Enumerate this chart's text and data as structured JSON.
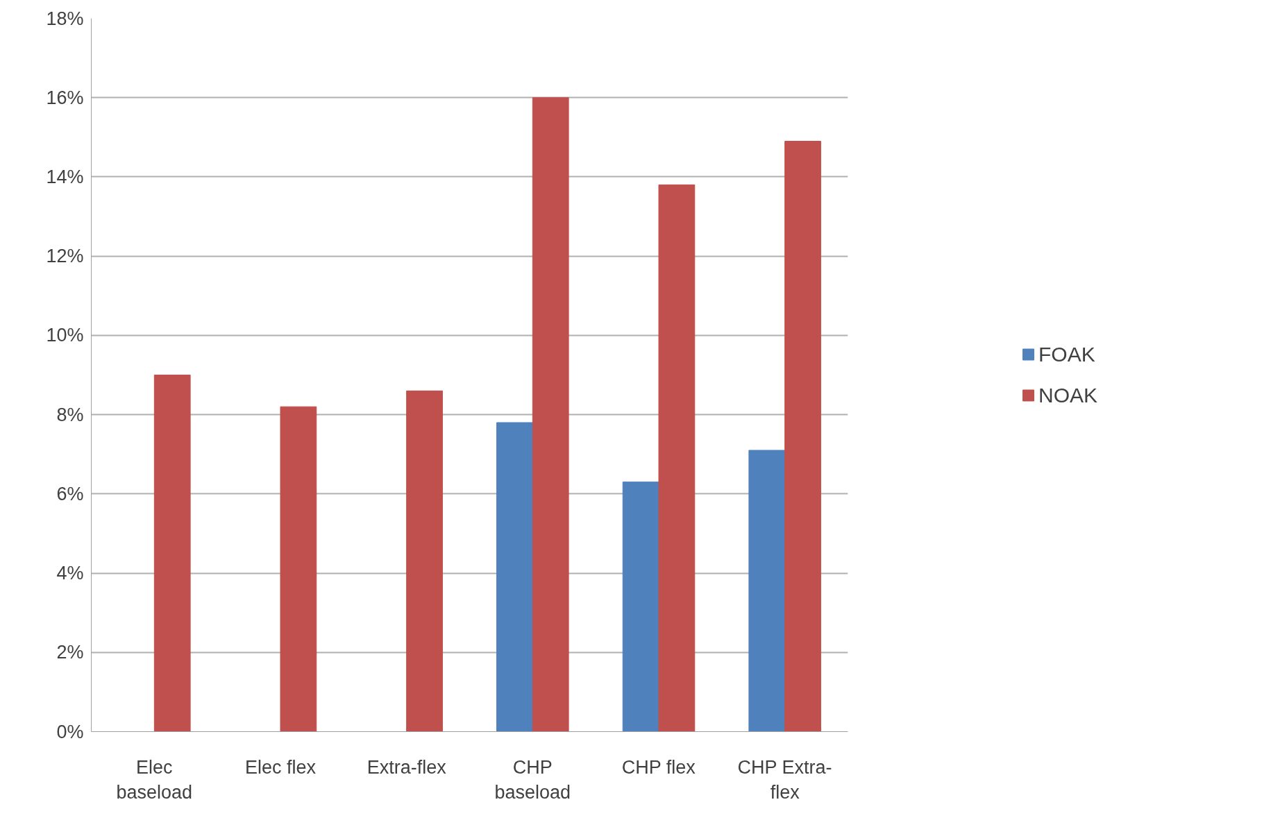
{
  "chart_data": {
    "type": "bar",
    "categories": [
      "Elec baseload",
      "Elec flex",
      "Extra-flex",
      "CHP baseload",
      "CHP flex",
      "CHP Extra-flex"
    ],
    "series": [
      {
        "name": "FOAK",
        "color": "#4f81bd",
        "values": [
          null,
          null,
          null,
          7.8,
          6.3,
          7.1
        ]
      },
      {
        "name": "NOAK",
        "color": "#c0504d",
        "values": [
          9.0,
          8.2,
          8.6,
          16.0,
          13.8,
          14.9
        ]
      }
    ],
    "ylim": [
      0,
      18
    ],
    "yticks": [
      {
        "value": 0,
        "label": "0%"
      },
      {
        "value": 2,
        "label": "2%"
      },
      {
        "value": 4,
        "label": "4%"
      },
      {
        "value": 6,
        "label": "6%"
      },
      {
        "value": 8,
        "label": "8%"
      },
      {
        "value": 10,
        "label": "10%"
      },
      {
        "value": 12,
        "label": "12%"
      },
      {
        "value": 14,
        "label": "14%"
      },
      {
        "value": 16,
        "label": "16%"
      },
      {
        "value": 18,
        "label": "18%"
      }
    ],
    "grid": "y",
    "legend": "right"
  }
}
